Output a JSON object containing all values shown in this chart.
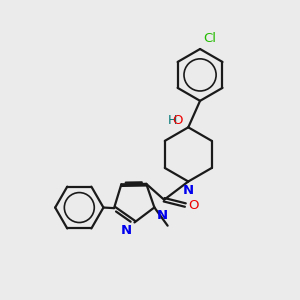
{
  "background_color": "#ebebeb",
  "bond_color": "#1a1a1a",
  "atom_colors": {
    "N": "#0000ee",
    "O": "#ee0000",
    "Cl": "#22bb00",
    "H": "#007777",
    "C": "#1a1a1a"
  },
  "figsize": [
    3.0,
    3.0
  ],
  "dpi": 100
}
